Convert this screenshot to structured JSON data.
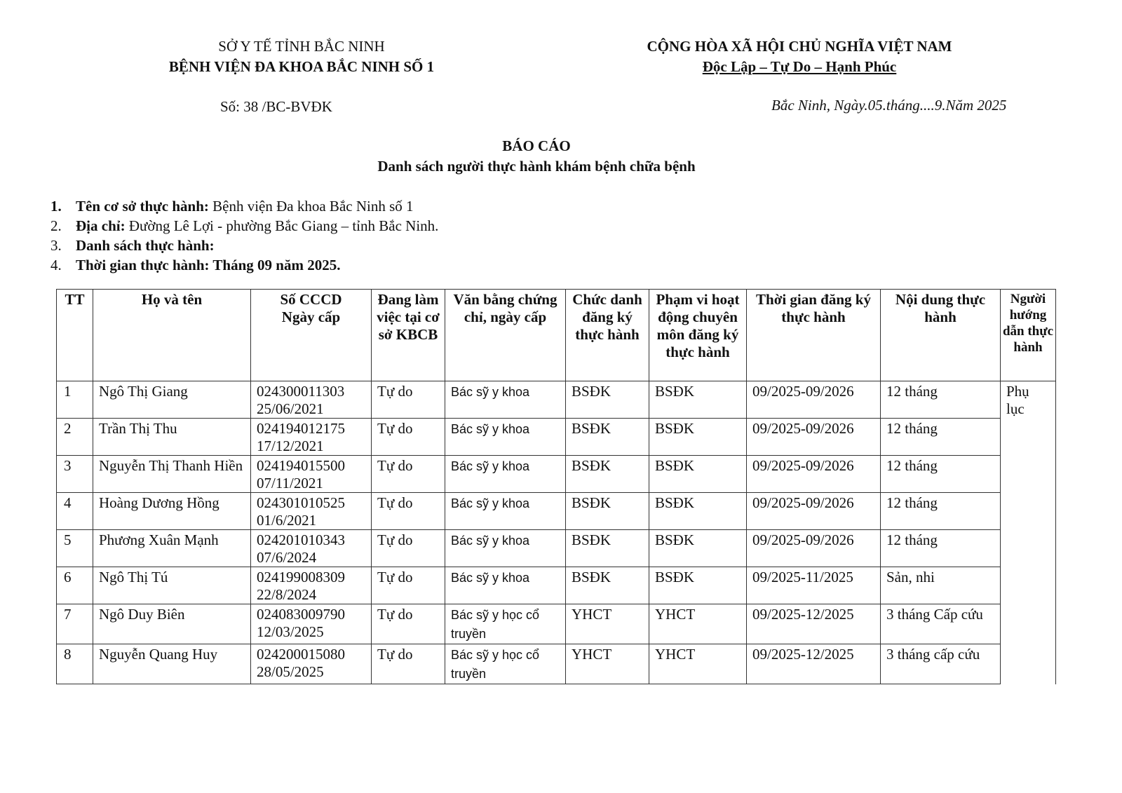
{
  "header": {
    "left_line1": "SỞ Y TẾ TỈNH BẮC NINH",
    "left_line2": "BỆNH VIỆN ĐA KHOA BẮC NINH SỐ 1",
    "right_line1": "CỘNG HÒA XÃ HỘI CHỦ NGHĨA VIỆT NAM",
    "right_line2": "Độc Lập – Tự Do – Hạnh Phúc",
    "number": "Số:  38  /BC-BVĐK",
    "date": "Bắc Ninh, Ngày.05.tháng....9.Năm 2025"
  },
  "title": "BÁO CÁO",
  "subtitle": "Danh sách người thực hành khám bệnh chữa bệnh",
  "items": [
    {
      "num": "1.",
      "label": "Tên cơ sở thực hành:",
      "value": " Bệnh viện Đa khoa Bắc Ninh số 1"
    },
    {
      "num": "2.",
      "label": "Địa chỉ:",
      "value": " Đường Lê Lợi - phường Bắc Giang – tỉnh Bắc Ninh."
    },
    {
      "num": "3.",
      "label": "Danh sách thực hành:",
      "value": ""
    },
    {
      "num": "4.",
      "label": "Thời gian thực hành: Tháng 09 năm 2025.",
      "value": ""
    }
  ],
  "table": {
    "headers": [
      "TT",
      "Họ và tên",
      "Số CCCD\nNgày cấp",
      "Đang làm việc tại cơ sở KBCB",
      "Văn bằng chứng chỉ, ngày cấp",
      "Chức danh đăng ký thực hành",
      "Phạm vi hoạt động chuyên môn đăng ký thực hành",
      "Thời gian đăng ký thực hành",
      "Nội dung thực hành",
      "Người hướng dẫn thực hành"
    ],
    "guide": "Phụ lục",
    "rows": [
      [
        "1",
        "Ngô Thị Giang",
        "024300011303\n25/06/2021",
        "Tự do",
        "Bác sỹ y khoa",
        "BSĐK",
        "BSĐK",
        "09/2025-09/2026",
        "12 tháng"
      ],
      [
        "2",
        "Trần Thị Thu",
        "024194012175\n17/12/2021",
        "Tự do",
        "Bác sỹ y khoa",
        "BSĐK",
        "BSĐK",
        "09/2025-09/2026",
        "12 tháng"
      ],
      [
        "3",
        "Nguyễn Thị Thanh Hiền",
        "024194015500\n07/11/2021",
        "Tự do",
        "Bác sỹ y khoa",
        "BSĐK",
        "BSĐK",
        "09/2025-09/2026",
        "12 tháng"
      ],
      [
        "4",
        "Hoàng Dương Hồng",
        "024301010525\n01/6/2021",
        "Tự do",
        "Bác sỹ y khoa",
        "BSĐK",
        "BSĐK",
        "09/2025-09/2026",
        "12 tháng"
      ],
      [
        "5",
        "Phương Xuân Mạnh",
        "024201010343\n07/6/2024",
        "Tự do",
        "Bác sỹ y khoa",
        "BSĐK",
        "BSĐK",
        "09/2025-09/2026",
        "12 tháng"
      ],
      [
        "6",
        "Ngô Thị Tú",
        "024199008309\n22/8/2024",
        "Tự do",
        "Bác sỹ y khoa",
        "BSĐK",
        "BSĐK",
        "09/2025-11/2025",
        "Sản, nhi"
      ],
      [
        "7",
        "Ngô Duy Biên",
        "024083009790\n12/03/2025",
        "Tự do",
        "Bác sỹ y học cổ truyền",
        "YHCT",
        "YHCT",
        "09/2025-12/2025",
        "3 tháng Cấp cứu"
      ],
      [
        "8",
        "Nguyễn Quang Huy",
        "024200015080\n28/05/2025",
        "Tự do",
        "Bác sỹ y học cổ truyền",
        "YHCT",
        "YHCT",
        "09/2025-12/2025",
        "3 tháng cấp cứu"
      ]
    ]
  }
}
